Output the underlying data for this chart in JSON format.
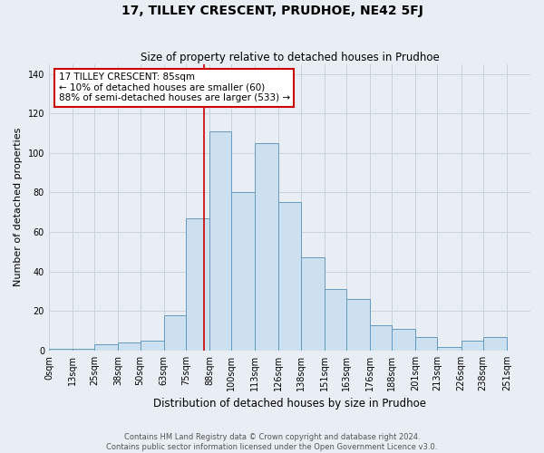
{
  "title": "17, TILLEY CRESCENT, PRUDHOE, NE42 5FJ",
  "subtitle": "Size of property relative to detached houses in Prudhoe",
  "xlabel": "Distribution of detached houses by size in Prudhoe",
  "ylabel": "Number of detached properties",
  "bin_labels": [
    "0sqm",
    "13sqm",
    "25sqm",
    "38sqm",
    "50sqm",
    "63sqm",
    "75sqm",
    "88sqm",
    "100sqm",
    "113sqm",
    "126sqm",
    "138sqm",
    "151sqm",
    "163sqm",
    "176sqm",
    "188sqm",
    "201sqm",
    "213sqm",
    "226sqm",
    "238sqm",
    "251sqm"
  ],
  "bin_edges": [
    0,
    13,
    25,
    38,
    50,
    63,
    75,
    88,
    100,
    113,
    126,
    138,
    151,
    163,
    176,
    188,
    201,
    213,
    226,
    238,
    251
  ],
  "bar_heights": [
    1,
    1,
    3,
    4,
    5,
    18,
    67,
    111,
    80,
    105,
    75,
    47,
    31,
    26,
    13,
    11,
    7,
    2,
    5,
    7
  ],
  "bar_color": "#cce0f0",
  "bar_edge_color": "#6699bb",
  "vline_x": 85,
  "vline_color": "#cc0000",
  "annotation_title": "17 TILLEY CRESCENT: 85sqm",
  "annotation_line1": "← 10% of detached houses are smaller (60)",
  "annotation_line2": "88% of semi-detached houses are larger (533) →",
  "annotation_box_edge": "#cc0000",
  "annotation_box_face": "#ffffff",
  "ylim": [
    0,
    145
  ],
  "yticks": [
    0,
    20,
    40,
    60,
    80,
    100,
    120,
    140
  ],
  "footer1": "Contains HM Land Registry data © Crown copyright and database right 2024.",
  "footer2": "Contains public sector information licensed under the Open Government Licence v3.0.",
  "background_color": "#e8eef4",
  "grid_color": "#c8d4dc",
  "title_fontsize": 10,
  "subtitle_fontsize": 8.5,
  "ylabel_fontsize": 8,
  "xlabel_fontsize": 8.5,
  "tick_fontsize": 7,
  "annotation_fontsize": 7.5,
  "footer_fontsize": 6
}
